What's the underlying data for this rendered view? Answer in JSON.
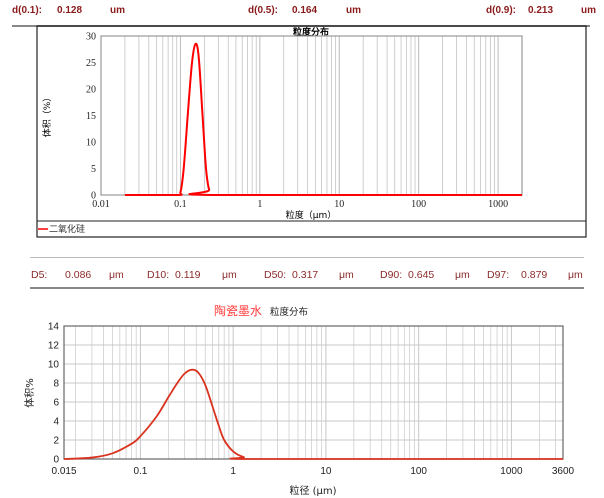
{
  "top_summary": {
    "d01_label": "d(0.1):",
    "d01": "0.128",
    "d05_label": "d(0.5):",
    "d05": "0.164",
    "d09_label": "d(0.9):",
    "d09": "0.213",
    "unit": "um"
  },
  "bottom_summary": {
    "d5_label": "D5:",
    "d5": "0.086",
    "d10_label": "D10:",
    "d10": "0.119",
    "d50_label": "D50:",
    "d50": "0.317",
    "d90_label": "D90:",
    "d90": "0.645",
    "d97_label": "D97:",
    "d97": "0.879",
    "unit": "μm"
  },
  "chart_data": [
    {
      "type": "line",
      "title": "粒度分布",
      "xlabel": "粒度（μm）",
      "ylabel": "体积（%）",
      "x_scale": "log",
      "xlim": [
        0.01,
        2000
      ],
      "ylim": [
        0,
        30
      ],
      "x_ticks": [
        "0.01",
        "0.1",
        "1",
        "10",
        "100",
        "1000"
      ],
      "y_ticks": [
        "0",
        "5",
        "10",
        "15",
        "20",
        "25",
        "30"
      ],
      "grid": true,
      "legend": "bottom-left",
      "series": [
        {
          "name": "二氧化硅",
          "color": "#ff0000",
          "x": [
            0.02,
            0.09,
            0.1,
            0.11,
            0.125,
            0.14,
            0.155,
            0.17,
            0.19,
            0.21,
            0.23,
            0.26,
            2000
          ],
          "y": [
            0,
            0,
            0.5,
            5,
            16,
            25,
            28.5,
            26,
            15,
            5,
            1,
            0,
            0
          ]
        }
      ]
    },
    {
      "type": "line",
      "title_sample": "陶瓷墨水",
      "title": "粒度分布",
      "xlabel": "粒径 (μm)",
      "ylabel": "体积%",
      "x_scale": "log",
      "xlim": [
        0.015,
        3600
      ],
      "ylim": [
        0,
        14
      ],
      "x_ticks": [
        "0.015",
        "0.1",
        "1",
        "10",
        "100",
        "1000",
        "3600"
      ],
      "y_ticks": [
        "0",
        "2",
        "4",
        "6",
        "8",
        "10",
        "12",
        "14"
      ],
      "grid": true,
      "series": [
        {
          "color": "#d9331f",
          "x": [
            0.015,
            0.03,
            0.05,
            0.08,
            0.1,
            0.15,
            0.2,
            0.25,
            0.3,
            0.36,
            0.42,
            0.5,
            0.6,
            0.7,
            0.8,
            1.0,
            1.3,
            1.8,
            3600
          ],
          "y": [
            0,
            0.15,
            0.6,
            1.6,
            2.4,
            4.5,
            6.5,
            8.0,
            9.0,
            9.4,
            9.1,
            7.8,
            5.5,
            3.5,
            2.0,
            0.8,
            0.2,
            0,
            0
          ]
        }
      ]
    }
  ]
}
